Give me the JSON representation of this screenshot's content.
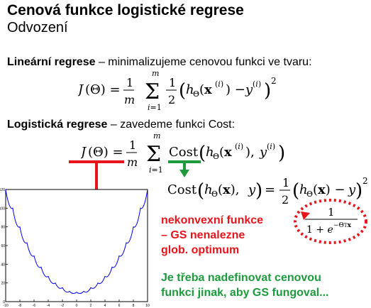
{
  "slide": {
    "title": "Cenová funkce logistické regrese",
    "subtitle": "Odvození",
    "linear": {
      "label": "Lineární regrese",
      "text": " – minimalizujeme cenovou funkci ve tvaru:"
    },
    "logistic": {
      "label": "Logistická regrese",
      "text": " – zavedeme funkci Cost:"
    },
    "note_red": [
      "nekonvexní funkce",
      "– GS nenalezne",
      "glob. optimum"
    ],
    "note_green": [
      "Je třeba nadefinovat cenovou",
      "funkci jinak, aby GS fungoval..."
    ],
    "colors": {
      "red": "#e8141b",
      "green": "#1d9a3c",
      "plot_line": "#0000ff"
    }
  },
  "chart_data": {
    "type": "line",
    "series": [
      {
        "x": [
          -10,
          -9,
          -8,
          -7,
          -6,
          -5,
          -4,
          -3,
          -2,
          -1,
          0,
          1,
          2,
          3,
          4,
          5,
          6,
          7,
          8,
          9,
          10
        ],
        "y": [
          120,
          100,
          80,
          63,
          49,
          37,
          27,
          20,
          15,
          11,
          10,
          11,
          15,
          20,
          27,
          37,
          49,
          63,
          80,
          100,
          120
        ]
      }
    ],
    "xlim": [
      -10,
      10
    ],
    "ylim": [
      0,
      120
    ],
    "x_ticks": [
      "-10",
      "-8",
      "-6",
      "-4",
      "-2",
      "0",
      "2",
      "4",
      "6",
      "8",
      "10"
    ],
    "y_ticks": [
      "0",
      "20",
      "40",
      "60",
      "80",
      "100",
      "120"
    ],
    "grid": false
  }
}
